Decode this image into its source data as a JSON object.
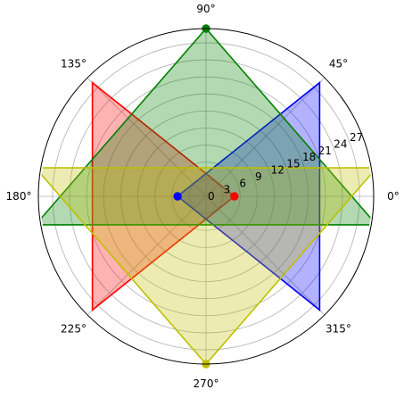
{
  "chart_data": {
    "type": "polar-area",
    "rlim": [
      0,
      29.5
    ],
    "r_ticks": [
      "0",
      "3",
      "6",
      "9",
      "12",
      "15",
      "18",
      "21",
      "24",
      "27"
    ],
    "r_tick_values": [
      0,
      3,
      6,
      9,
      12,
      15,
      18,
      21,
      24,
      27
    ],
    "theta_ticks": [
      "0°",
      "45°",
      "90°",
      "135°",
      "180°",
      "225°",
      "270°",
      "315°"
    ],
    "theta_tick_values": [
      0,
      45,
      90,
      135,
      180,
      225,
      270,
      315
    ],
    "grid": true,
    "series": [
      {
        "color": "#ff0000",
        "fill_alpha": 0.3,
        "points": [
          [
            0,
            5
          ],
          [
            135,
            28.28
          ],
          [
            225,
            28.28
          ],
          [
            0,
            5
          ]
        ],
        "marker": [
          0,
          5
        ]
      },
      {
        "color": "#0000ff",
        "fill_alpha": 0.3,
        "points": [
          [
            180,
            5
          ],
          [
            45,
            28.28
          ],
          [
            315,
            28.28
          ],
          [
            180,
            5
          ]
        ],
        "marker": [
          180,
          5
        ]
      },
      {
        "color": "#008000",
        "fill_alpha": 0.3,
        "points": [
          [
            90,
            29.5
          ],
          [
            189.46,
            30.41
          ],
          [
            350.54,
            30.41
          ],
          [
            90,
            29.5
          ]
        ],
        "marker": [
          90,
          29.5
        ]
      },
      {
        "color": "#bfbf00",
        "fill_alpha": 0.3,
        "points": [
          [
            270,
            29.5
          ],
          [
            9.46,
            30.41
          ],
          [
            170.54,
            30.41
          ],
          [
            270,
            29.5
          ]
        ],
        "marker": [
          270,
          29.5
        ]
      }
    ]
  }
}
